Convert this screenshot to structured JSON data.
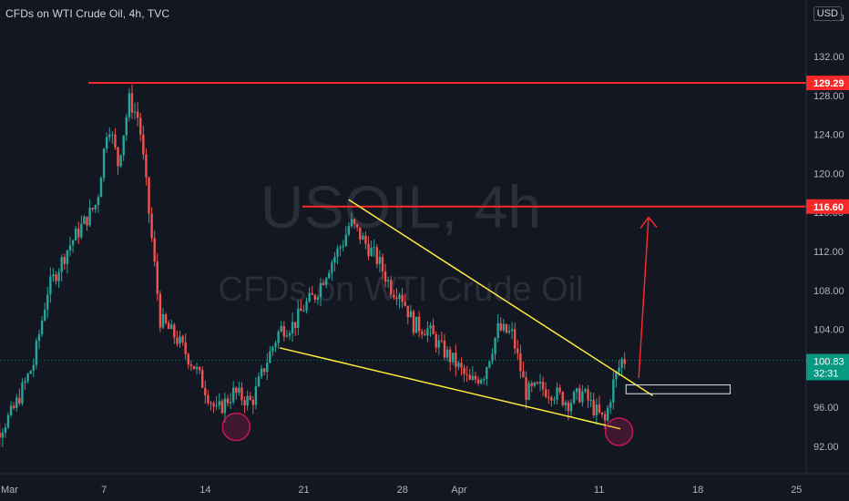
{
  "header": {
    "title": "CFDs on WTI Crude Oil, 4h, TVC"
  },
  "price_axis": {
    "currency": "USD"
  },
  "watermark": {
    "symbol": "USOIL, 4h",
    "description": "CFDs on WTI Crude Oil"
  },
  "colors": {
    "background": "#131722",
    "grid": "#1e222d",
    "axis_text": "#b2b5be",
    "up_candle": "#26a69a",
    "down_candle": "#ef5350",
    "level_line": "#f7282a",
    "wedge_line": "#ffeb3b",
    "current_price_label": "#089981",
    "marker": "#c2185b"
  },
  "chart_data": {
    "type": "candlestick",
    "title": "CFDs on WTI Crude Oil, 4h, TVC",
    "y_axis": {
      "ticks": [
        92.0,
        96.0,
        100.0,
        104.0,
        108.0,
        112.0,
        116.0,
        120.0,
        124.0,
        128.0,
        132.0
      ],
      "ylim": [
        89.5,
        136.5
      ],
      "grid": false
    },
    "x_axis": {
      "ticks": [
        {
          "label": "Mar",
          "day": 0
        },
        {
          "label": "7",
          "day": 7
        },
        {
          "label": "14",
          "day": 14
        },
        {
          "label": "21",
          "day": 21
        },
        {
          "label": "28",
          "day": 28
        },
        {
          "label": "Apr",
          "day": 32
        },
        {
          "label": "11",
          "day": 42
        },
        {
          "label": "18",
          "day": 49
        },
        {
          "label": "25",
          "day": 56
        }
      ],
      "grid": false
    },
    "price_path": [
      [
        -2,
        90.5
      ],
      [
        0.5,
        95.5
      ],
      [
        2,
        100.5
      ],
      [
        3,
        108
      ],
      [
        4.5,
        112.5
      ],
      [
        6.5,
        117
      ],
      [
        7.3,
        125.5
      ],
      [
        8,
        121
      ],
      [
        8.8,
        127.5
      ],
      [
        9.5,
        125.5
      ],
      [
        10.2,
        116
      ],
      [
        11,
        105
      ],
      [
        12.2,
        103
      ],
      [
        13.5,
        100
      ],
      [
        15,
        95.5
      ],
      [
        16.2,
        97.5
      ],
      [
        17.5,
        96.5
      ],
      [
        18.5,
        100.5
      ],
      [
        19.5,
        104
      ],
      [
        20.5,
        104.5
      ],
      [
        21.3,
        106.5
      ],
      [
        22,
        107.5
      ],
      [
        23,
        110.5
      ],
      [
        24,
        113
      ],
      [
        24.5,
        115
      ],
      [
        25.5,
        113
      ],
      [
        26.5,
        111
      ],
      [
        27.5,
        108
      ],
      [
        28,
        108
      ],
      [
        29,
        104.5
      ],
      [
        30,
        104
      ],
      [
        31,
        102
      ],
      [
        32,
        100.5
      ],
      [
        33,
        98.5
      ],
      [
        34,
        99.5
      ],
      [
        35,
        104
      ],
      [
        36,
        103.5
      ],
      [
        37,
        97.5
      ],
      [
        38,
        98
      ],
      [
        39,
        97.5
      ],
      [
        40,
        96.5
      ],
      [
        41,
        97.5
      ],
      [
        42,
        95.5
      ],
      [
        42.6,
        94.5
      ],
      [
        43.2,
        98.5
      ],
      [
        43.8,
        100.83
      ]
    ],
    "levels": [
      {
        "label": "129.29",
        "value": 129.29,
        "from_day": 5.7
      },
      {
        "label": "116.60",
        "value": 116.6,
        "from_day": 20.9
      }
    ],
    "current_price": {
      "value": 100.83,
      "label": "100.83",
      "countdown": "32:31"
    },
    "falling_wedge": {
      "upper": [
        [
          24.2,
          117.3
        ],
        [
          45.8,
          97.2
        ]
      ],
      "lower": [
        [
          19.3,
          102.1
        ],
        [
          43.5,
          93.8
        ]
      ]
    },
    "target_arrow": {
      "from": [
        44.8,
        99.0
      ],
      "to": [
        45.5,
        115.5
      ]
    },
    "breakout_box": {
      "x": [
        43.9,
        51.3
      ],
      "y": [
        97.4,
        98.3
      ]
    },
    "circled_lows": [
      {
        "day": 16.2,
        "value": 94.0
      },
      {
        "day": 43.4,
        "value": 93.5
      }
    ]
  }
}
